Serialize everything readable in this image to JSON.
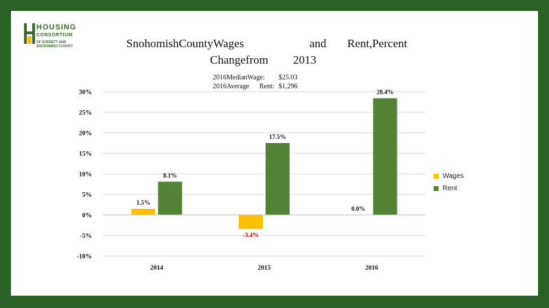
{
  "logo": {
    "line1": "HOUSING",
    "line2": "CONSORTIUM",
    "line3": "OF EVERETT AND SNOHOMISH COUNTY"
  },
  "title": {
    "line1_a": "SnohomishCountyWages",
    "line1_b": "and",
    "line1_c": "Rent,Percent",
    "line2_a": "Changefrom",
    "line2_b": "2013"
  },
  "subtitle": {
    "wage_label": "2016MedianWage:",
    "wage_value": "$25.03",
    "rent_label_a": "2016Average",
    "rent_label_b": "Rent:",
    "rent_value": "$1,296"
  },
  "colors": {
    "wages": "#ffc000",
    "rent": "#548235",
    "frame": "#2a6226",
    "negative_label": "#c00000"
  },
  "chart_data": {
    "type": "bar",
    "categories": [
      "2014",
      "2015",
      "2016"
    ],
    "series": [
      {
        "name": "Wages",
        "values": [
          1.5,
          -3.4,
          0.0
        ],
        "labels": [
          "1.5%",
          "-3.4%",
          "0.0%"
        ]
      },
      {
        "name": "Rent",
        "values": [
          8.1,
          17.5,
          28.4
        ],
        "labels": [
          "8.1%",
          "17.5%",
          "28.4%"
        ]
      }
    ],
    "ylim": [
      -10,
      30
    ],
    "yticks": [
      30,
      25,
      20,
      15,
      10,
      5,
      0,
      -5,
      -10
    ],
    "ytick_labels": [
      "30%",
      "25%",
      "20%",
      "15%",
      "10%",
      "5%",
      "0%",
      "-5%",
      "-10%"
    ],
    "grid": true,
    "legend": "right"
  }
}
